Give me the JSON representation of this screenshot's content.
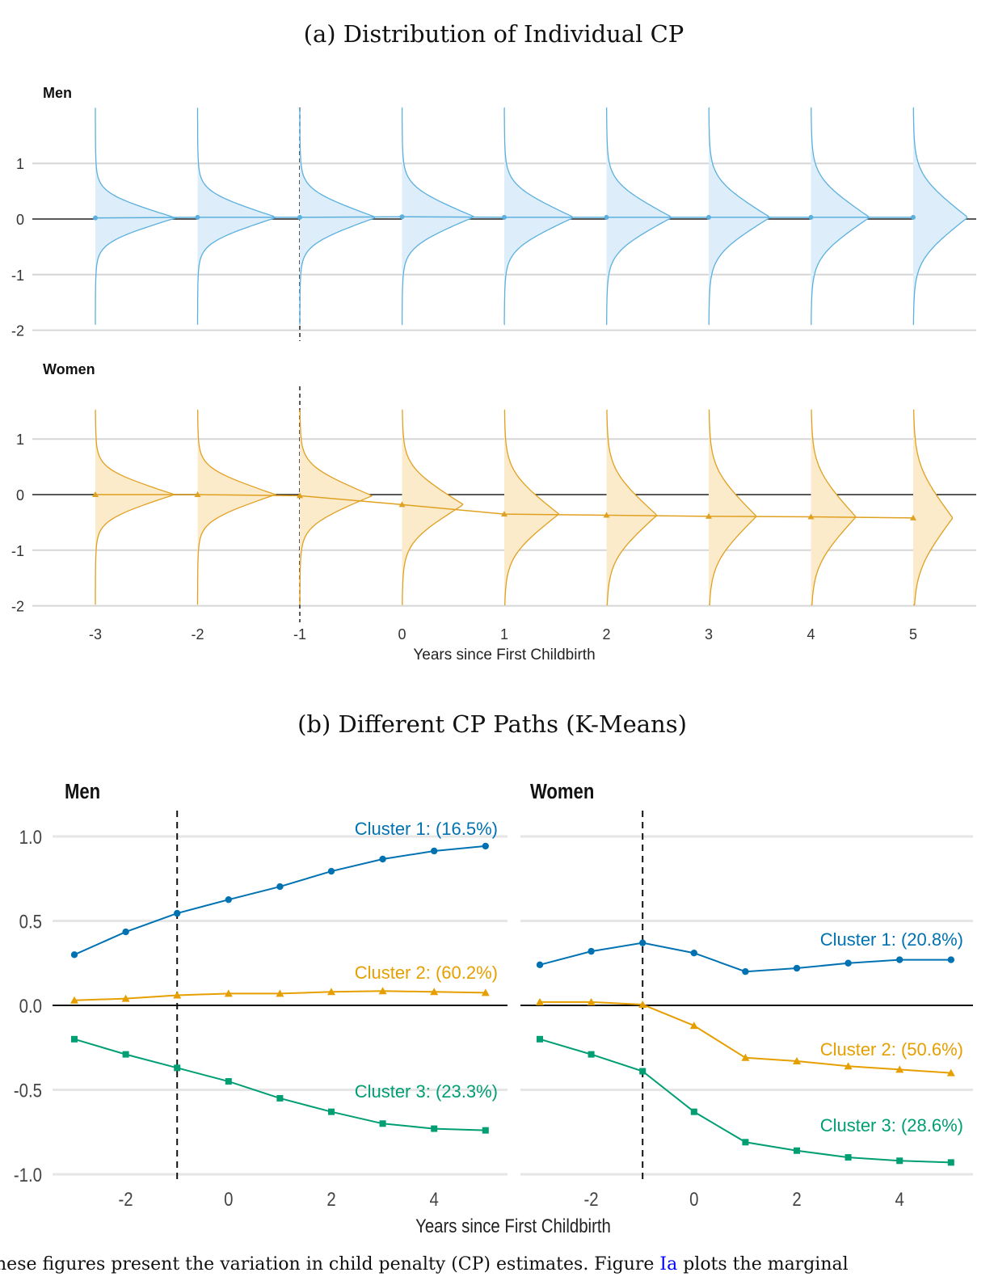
{
  "chart_data": [
    {
      "type": "violin",
      "title": "(a) Distribution of Individual CP",
      "xlabel": "Years since First Childbirth",
      "ylabel": "",
      "x_ticks": [
        "-3",
        "-2",
        "-1",
        "0",
        "1",
        "2",
        "3",
        "4",
        "5"
      ],
      "y_ticks": [
        "1",
        "0",
        "-1",
        "-2"
      ],
      "reference_line_x": -1,
      "grid": true,
      "facets": [
        {
          "label": "Men",
          "color_line": "#5BB0DE",
          "color_fill": "#DDEEFA",
          "ylim": [
            -2,
            2
          ],
          "x": [
            -3,
            -2,
            -1,
            0,
            1,
            2,
            3,
            4,
            5
          ],
          "means": [
            0.02,
            0.03,
            0.03,
            0.04,
            0.03,
            0.03,
            0.03,
            0.03,
            0.03
          ],
          "spread": [
            0.26,
            0.27,
            0.29,
            0.32,
            0.34,
            0.37,
            0.4,
            0.42,
            0.45
          ],
          "range": [
            -1.9,
            2.0
          ]
        },
        {
          "label": "Women",
          "color_line": "#E0A020",
          "color_fill": "#FBEBCB",
          "ylim": [
            -2,
            1.5
          ],
          "x": [
            -3,
            -2,
            -1,
            0,
            1,
            2,
            3,
            4,
            5
          ],
          "means": [
            0.0,
            0.0,
            -0.02,
            -0.18,
            -0.35,
            -0.37,
            -0.39,
            -0.4,
            -0.42
          ],
          "spread": [
            0.27,
            0.28,
            0.32,
            0.4,
            0.45,
            0.48,
            0.5,
            0.52,
            0.56
          ],
          "range": [
            -1.98,
            1.52
          ]
        }
      ]
    },
    {
      "type": "line",
      "title": "(b) Different CP Paths (K-Means)",
      "xlabel": "Years since First Childbirth",
      "ylabel": "",
      "x_ticks": [
        "-2",
        "0",
        "2",
        "4"
      ],
      "y_ticks": [
        "1.0",
        "0.5",
        "0.0",
        "-0.5",
        "-1.0"
      ],
      "ylim": [
        -1.0,
        1.2
      ],
      "reference_line_x": -1,
      "grid": true,
      "facets": [
        {
          "label": "Men",
          "x": [
            -3,
            -2,
            -1,
            0,
            1,
            2,
            3,
            4,
            5
          ],
          "series": [
            {
              "name": "Cluster 1: (16.5%)",
              "color": "#0072B2",
              "marker": "circle",
              "values": [
                0.3,
                0.435,
                0.545,
                0.626,
                0.703,
                0.794,
                0.866,
                0.914,
                0.943
              ]
            },
            {
              "name": "Cluster 2: (60.2%)",
              "color": "#E69F00",
              "marker": "triangle",
              "values": [
                0.03,
                0.04,
                0.06,
                0.07,
                0.07,
                0.08,
                0.085,
                0.08,
                0.075
              ]
            },
            {
              "name": "Cluster 3: (23.3%)",
              "color": "#009E73",
              "marker": "square",
              "values": [
                -0.2,
                -0.29,
                -0.37,
                -0.45,
                -0.55,
                -0.63,
                -0.7,
                -0.73,
                -0.74
              ]
            }
          ]
        },
        {
          "label": "Women",
          "x": [
            -3,
            -2,
            -1,
            0,
            1,
            2,
            3,
            4,
            5
          ],
          "series": [
            {
              "name": "Cluster 1: (20.8%)",
              "color": "#0072B2",
              "marker": "circle",
              "values": [
                0.24,
                0.32,
                0.37,
                0.31,
                0.2,
                0.22,
                0.25,
                0.27,
                0.27
              ]
            },
            {
              "name": "Cluster 2: (50.6%)",
              "color": "#E69F00",
              "marker": "triangle",
              "values": [
                0.02,
                0.02,
                0.005,
                -0.12,
                -0.31,
                -0.33,
                -0.36,
                -0.38,
                -0.4
              ]
            },
            {
              "name": "Cluster 3: (28.6%)",
              "color": "#009E73",
              "marker": "square",
              "values": [
                -0.2,
                -0.29,
                -0.39,
                -0.63,
                -0.81,
                -0.86,
                -0.9,
                -0.92,
                -0.93
              ]
            }
          ]
        }
      ]
    }
  ],
  "caption": {
    "before": "hese figures present the variation in child penalty (CP) estimates. Figure ",
    "link": "Ia",
    "after": " plots the marginal"
  }
}
